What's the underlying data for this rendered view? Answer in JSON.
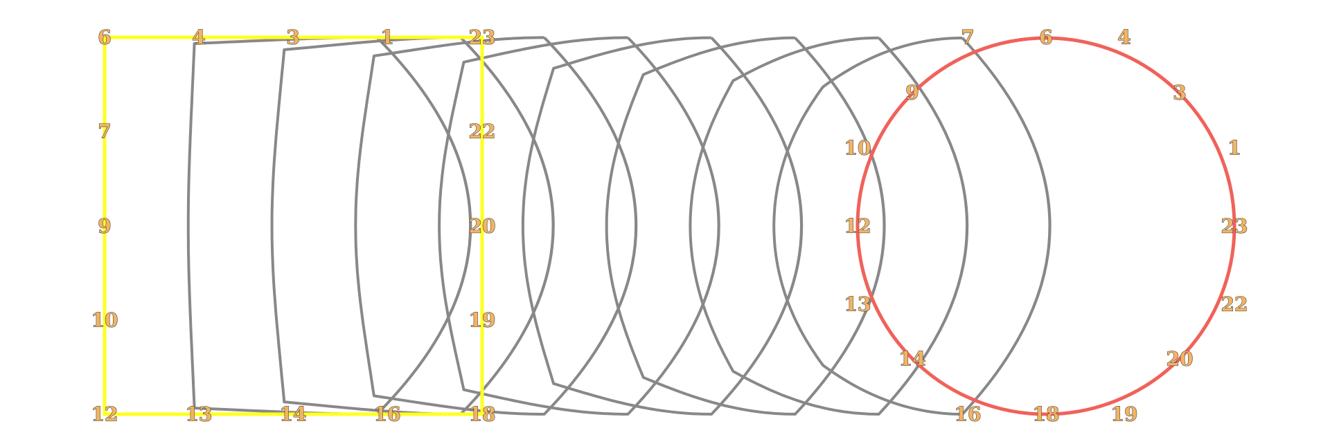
{
  "colors": {
    "square_stroke": "#ffff22",
    "circle_stroke": "#f0625a",
    "intermediate_stroke": "#888888",
    "label_fill": "#f2b463",
    "label_outline": "#3a3a3a",
    "background": "#ffffff"
  },
  "morph": {
    "start_shape": "square",
    "end_shape": "circle",
    "intermediate_steps": 8
  },
  "square_labels": [
    "6",
    "4",
    "3",
    "1",
    "23",
    "7",
    "22",
    "9",
    "20",
    "10",
    "19",
    "12",
    "13",
    "14",
    "16",
    "18"
  ],
  "circle_labels": [
    "7",
    "6",
    "4",
    "9",
    "3",
    "10",
    "1",
    "12",
    "23",
    "13",
    "22",
    "14",
    "20",
    "16",
    "18",
    "19"
  ]
}
